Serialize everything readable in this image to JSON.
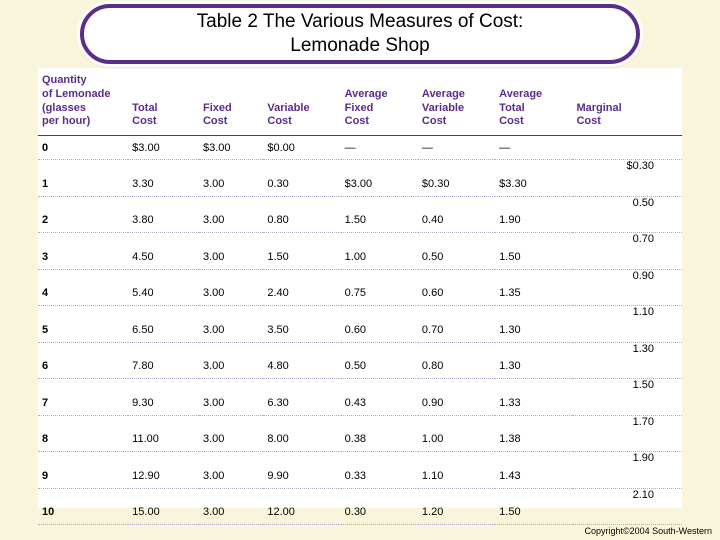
{
  "title": {
    "line1": "Table 2 The Various Measures of Cost:",
    "line2": "Lemonade Shop"
  },
  "columns": [
    [
      "Quantity",
      "of Lemonade",
      "(glasses",
      "per hour)"
    ],
    [
      "Total",
      "Cost"
    ],
    [
      "Fixed",
      "Cost"
    ],
    [
      "Variable",
      "Cost"
    ],
    [
      "Average",
      "Fixed",
      "Cost"
    ],
    [
      "Average",
      "Variable",
      "Cost"
    ],
    [
      "Average",
      "Total",
      "Cost"
    ],
    [
      "Marginal",
      "Cost"
    ]
  ],
  "rows": [
    {
      "q": "0",
      "tc": "$3.00",
      "fc": "$3.00",
      "vc": "$0.00",
      "afc": "—",
      "avc": "—",
      "atc": "—",
      "mc": "$0.30"
    },
    {
      "q": "1",
      "tc": "3.30",
      "fc": "3.00",
      "vc": "0.30",
      "afc": "$3.00",
      "avc": "$0.30",
      "atc": "$3.30",
      "mc": "0.50"
    },
    {
      "q": "2",
      "tc": "3.80",
      "fc": "3.00",
      "vc": "0.80",
      "afc": "1.50",
      "avc": "0.40",
      "atc": "1.90",
      "mc": "0.70"
    },
    {
      "q": "3",
      "tc": "4.50",
      "fc": "3.00",
      "vc": "1.50",
      "afc": "1.00",
      "avc": "0.50",
      "atc": "1.50",
      "mc": "0.90"
    },
    {
      "q": "4",
      "tc": "5.40",
      "fc": "3.00",
      "vc": "2.40",
      "afc": "0.75",
      "avc": "0.60",
      "atc": "1.35",
      "mc": "1.10"
    },
    {
      "q": "5",
      "tc": "6.50",
      "fc": "3.00",
      "vc": "3.50",
      "afc": "0.60",
      "avc": "0.70",
      "atc": "1.30",
      "mc": "1.30"
    },
    {
      "q": "6",
      "tc": "7.80",
      "fc": "3.00",
      "vc": "4.80",
      "afc": "0.50",
      "avc": "0.80",
      "atc": "1.30",
      "mc": "1.50"
    },
    {
      "q": "7",
      "tc": "9.30",
      "fc": "3.00",
      "vc": "6.30",
      "afc": "0.43",
      "avc": "0.90",
      "atc": "1.33",
      "mc": "1.70"
    },
    {
      "q": "8",
      "tc": "11.00",
      "fc": "3.00",
      "vc": "8.00",
      "afc": "0.38",
      "avc": "1.00",
      "atc": "1.38",
      "mc": "1.90"
    },
    {
      "q": "9",
      "tc": "12.90",
      "fc": "3.00",
      "vc": "9.90",
      "afc": "0.33",
      "avc": "1.10",
      "atc": "1.43",
      "mc": "2.10"
    },
    {
      "q": "10",
      "tc": "15.00",
      "fc": "3.00",
      "vc": "12.00",
      "afc": "0.30",
      "avc": "1.20",
      "atc": "1.50",
      "mc": ""
    }
  ],
  "copyright": "Copyright©2004  South-Western",
  "colors": {
    "header_border": "#5a2d8a",
    "header_text": "#5a2d8a",
    "row_dotted": "#b8a5cc",
    "page_bg": "#f9f5da",
    "panel_bg": "#ffffff"
  }
}
